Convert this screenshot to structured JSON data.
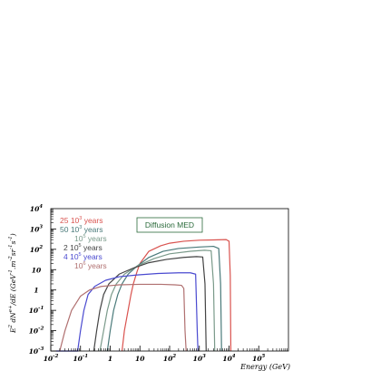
{
  "chart_data": {
    "type": "line",
    "title": "",
    "xlabel": "Energy (GeV)",
    "ylabel_main": "E",
    "ylabel_sup": "2",
    "ylabel_frac_top": "dN",
    "ylabel_frac_top_sup": "e+",
    "ylabel_frac_bottom": "dE",
    "ylabel_units": "(GeV",
    "ylabel_units_tail": "m",
    "ylabel_units_tail2": "sr",
    "ylabel_units_tail3": "s",
    "ylabel_units_end": ")",
    "xscale": "log",
    "yscale": "log",
    "xlim": [
      0.01,
      1000000
    ],
    "ylim": [
      0.001,
      10000
    ],
    "x_ticks": [
      {
        "value": 0.01,
        "base": "10",
        "exp": "-2"
      },
      {
        "value": 0.1,
        "base": "10",
        "exp": "-1"
      },
      {
        "value": 1,
        "base": "1",
        "exp": ""
      },
      {
        "value": 10,
        "base": "10",
        "exp": ""
      },
      {
        "value": 100,
        "base": "10",
        "exp": "2"
      },
      {
        "value": 1000,
        "base": "10",
        "exp": "3"
      },
      {
        "value": 10000,
        "base": "10",
        "exp": "4"
      },
      {
        "value": 100000,
        "base": "10",
        "exp": "5"
      }
    ],
    "y_ticks": [
      {
        "value": 0.001,
        "base": "10",
        "exp": "-3"
      },
      {
        "value": 0.01,
        "base": "10",
        "exp": "-2"
      },
      {
        "value": 0.1,
        "base": "10",
        "exp": "-1"
      },
      {
        "value": 1,
        "base": "1",
        "exp": ""
      },
      {
        "value": 10,
        "base": "10",
        "exp": ""
      },
      {
        "value": 100,
        "base": "10",
        "exp": "2"
      },
      {
        "value": 1000,
        "base": "10",
        "exp": "3"
      },
      {
        "value": 10000,
        "base": "10",
        "exp": "4"
      }
    ],
    "annotation": "Diffusion MED",
    "legend_placement": "top-left",
    "series": [
      {
        "name": "25 10^3 years",
        "label_main": "25 10",
        "label_exp": "3",
        "label_tail": " years",
        "color": "#d9534f",
        "x": [
          2.5,
          3,
          4,
          5,
          6,
          8,
          10,
          20,
          50,
          100,
          300,
          1000,
          3000,
          8000,
          10000,
          11000,
          11500
        ],
        "y": [
          0.001,
          0.01,
          0.1,
          0.6,
          2,
          8,
          20,
          80,
          150,
          200,
          250,
          280,
          290,
          300,
          250,
          5,
          0.001
        ]
      },
      {
        "name": "50 10^3 years",
        "label_main": "50 10",
        "label_exp": "3",
        "label_tail": " years",
        "color": "#4a7a7a",
        "x": [
          0.8,
          1,
          1.3,
          1.8,
          2.5,
          4,
          8,
          20,
          60,
          200,
          1000,
          3000,
          4500,
          5200,
          5600
        ],
        "y": [
          0.001,
          0.01,
          0.1,
          0.6,
          2,
          6,
          15,
          40,
          80,
          110,
          130,
          140,
          110,
          2,
          0.001
        ]
      },
      {
        "name": "10^5 years",
        "label_main": "10",
        "label_exp": "5",
        "label_tail": " years",
        "color": "#7a9a8a",
        "x": [
          0.45,
          0.6,
          0.8,
          1.1,
          1.6,
          3,
          8,
          30,
          100,
          500,
          1500,
          2500,
          3000,
          3300
        ],
        "y": [
          0.001,
          0.01,
          0.1,
          0.6,
          2,
          6,
          15,
          35,
          60,
          80,
          90,
          85,
          2,
          0.001
        ]
      },
      {
        "name": "2 10^5 years",
        "label_main": "2 10",
        "label_exp": "5",
        "label_tail": " years",
        "color": "#444444",
        "x": [
          0.28,
          0.35,
          0.45,
          0.6,
          0.9,
          2,
          6,
          20,
          80,
          300,
          800,
          1300,
          1550,
          1700
        ],
        "y": [
          0.001,
          0.01,
          0.1,
          0.6,
          2,
          6,
          12,
          22,
          32,
          40,
          44,
          42,
          2,
          0.001
        ]
      },
      {
        "name": "4 10^5 years",
        "label_main": "4 10",
        "label_exp": "5",
        "label_tail": " years",
        "color": "#4a4ad0",
        "x": [
          0.015,
          0.08,
          0.1,
          0.13,
          0.18,
          0.3,
          0.7,
          2,
          8,
          40,
          200,
          500,
          750,
          850,
          900
        ],
        "y": [
          0.001,
          0.001,
          0.01,
          0.1,
          0.6,
          1.5,
          3,
          4.5,
          5.5,
          6.5,
          7,
          7,
          6,
          0.01,
          0.001
        ]
      },
      {
        "name": "10^6 years",
        "label_main": "10",
        "label_exp": "6",
        "label_tail": " years",
        "color": "#b07070",
        "x": [
          0.02,
          0.03,
          0.05,
          0.1,
          0.2,
          0.5,
          2,
          10,
          50,
          150,
          250,
          300,
          330,
          360
        ],
        "y": [
          0.001,
          0.01,
          0.1,
          0.5,
          1,
          1.5,
          1.8,
          1.9,
          1.9,
          1.8,
          1.7,
          1.2,
          0.01,
          0.001
        ]
      }
    ]
  }
}
